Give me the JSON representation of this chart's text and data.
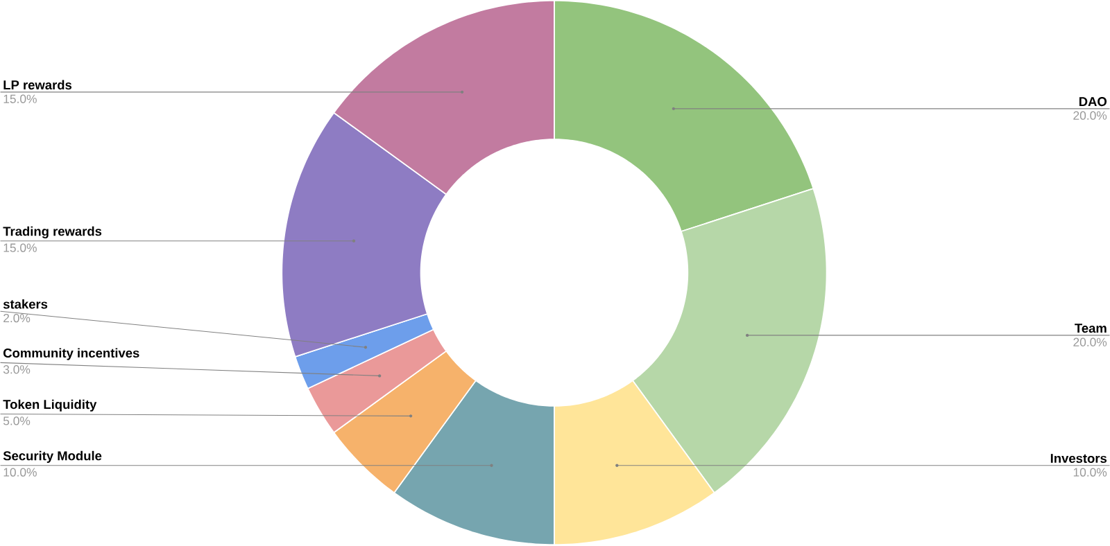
{
  "chart_data": {
    "type": "donut",
    "categories": [
      "DAO",
      "Team",
      "Investors",
      "Security Module",
      "Token Liquidity",
      "Community incentives",
      "stakers",
      "Trading rewards",
      "LP rewards"
    ],
    "values": [
      20,
      20,
      10,
      10,
      5,
      3,
      2,
      15,
      15
    ],
    "value_labels": [
      "20.0%",
      "20.0%",
      "10.0%",
      "10.0%",
      "5.0%",
      "3.0%",
      "2.0%",
      "15.0%",
      "15.0%"
    ],
    "colors": [
      "#93c47d",
      "#b6d7a8",
      "#ffe599",
      "#76a5af",
      "#f6b26b",
      "#ea9999",
      "#6d9eeb",
      "#8e7cc3",
      "#c27ba0"
    ]
  }
}
